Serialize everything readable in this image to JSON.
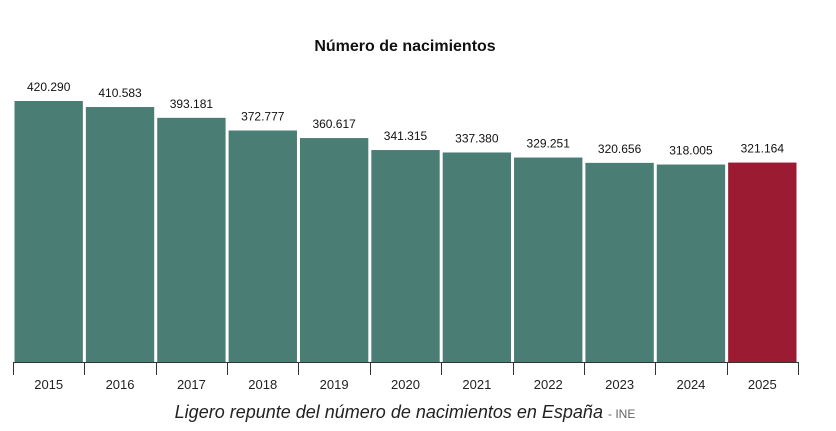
{
  "chart_data": {
    "type": "bar",
    "title": "Número de nacimientos",
    "categories": [
      "2015",
      "2016",
      "2017",
      "2018",
      "2019",
      "2020",
      "2021",
      "2022",
      "2023",
      "2024",
      "2025"
    ],
    "values": [
      420290,
      410583,
      393181,
      372777,
      360617,
      341315,
      337380,
      329251,
      320656,
      318005,
      321164
    ],
    "value_labels": [
      "420.290",
      "410.583",
      "393.181",
      "372.777",
      "360.617",
      "341.315",
      "337.380",
      "329.251",
      "320.656",
      "318.005",
      "321.164"
    ],
    "ylim": [
      0,
      420290
    ],
    "colors": {
      "default": "#4a7d74",
      "highlight": "#9b1b33"
    },
    "highlight_index": 10,
    "xlabel": "",
    "ylabel": "",
    "grid": false
  },
  "caption": {
    "text": "Ligero repunte del número de nacimientos en España",
    "source": "- INE"
  }
}
